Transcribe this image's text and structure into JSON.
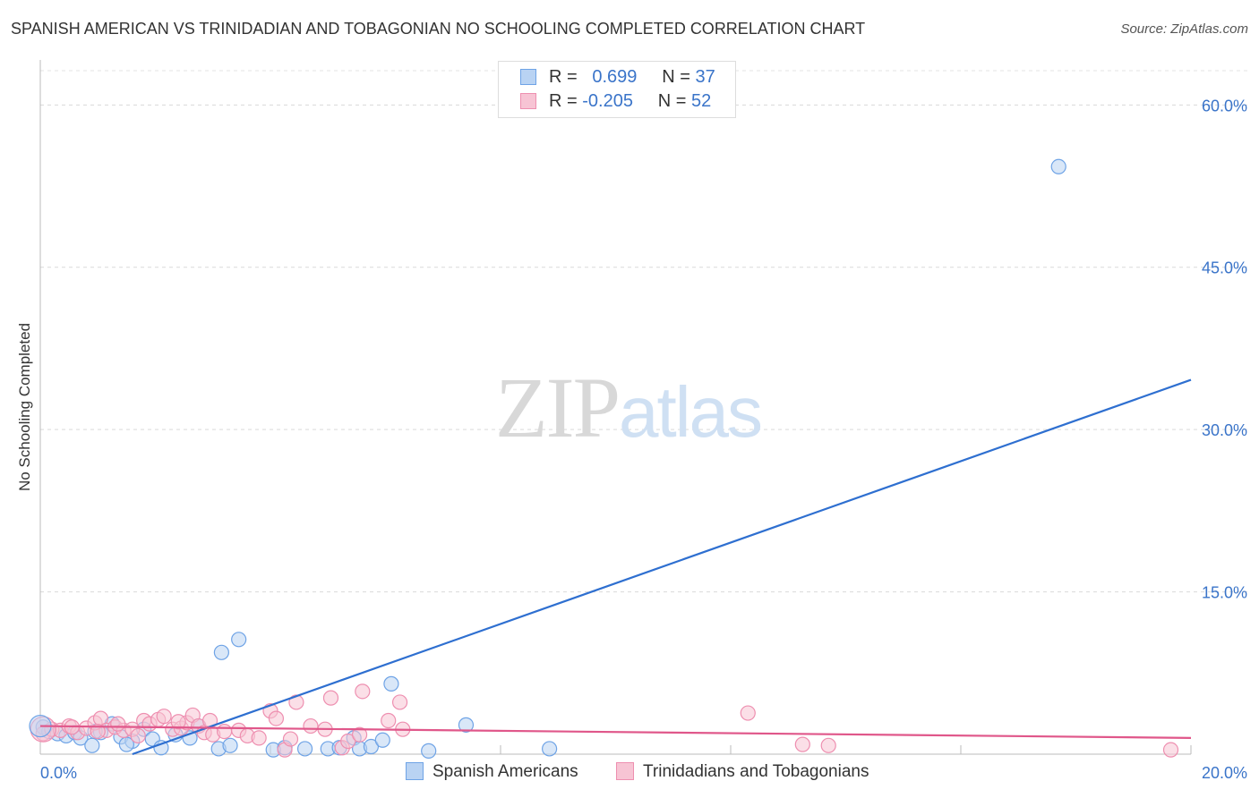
{
  "title": "SPANISH AMERICAN VS TRINIDADIAN AND TOBAGONIAN NO SCHOOLING COMPLETED CORRELATION CHART",
  "source": "Source: ZipAtlas.com",
  "watermark": {
    "zip": "ZIP",
    "atlas": "atlas"
  },
  "legend": {
    "rows": [
      {
        "r_label": "R =",
        "r_value": "0.699",
        "n_label": "N =",
        "n_value": "37"
      },
      {
        "r_label": "R =",
        "r_value": "-0.205",
        "n_label": "N =",
        "n_value": "52"
      }
    ]
  },
  "bottom_legend": [
    "Spanish Americans",
    "Trinidadians and Tobagonians"
  ],
  "chart_data": {
    "type": "scatter",
    "title": "SPANISH AMERICAN VS TRINIDADIAN AND TOBAGONIAN NO SCHOOLING COMPLETED CORRELATION CHART",
    "xlabel": "",
    "ylabel": "No Schooling Completed",
    "xlim": [
      0,
      20
    ],
    "ylim": [
      0,
      63.5
    ],
    "y_ticks": [
      15,
      30,
      45,
      60
    ],
    "y_tick_labels": [
      "15.0%",
      "30.0%",
      "45.0%",
      "60.0%"
    ],
    "x_tick_labels": [
      "0.0%",
      "20.0%"
    ],
    "grid": true,
    "series": [
      {
        "name": "Spanish Americans",
        "color": "#6ea3e6",
        "fill": "#b9d3f3",
        "line_color": "#2e6fd0",
        "trend": {
          "x": [
            1.6,
            20.0
          ],
          "y": [
            0.0,
            34.6
          ]
        },
        "points": [
          [
            0.05,
            2.5
          ],
          [
            0.15,
            2.1
          ],
          [
            0.3,
            1.9
          ],
          [
            0.45,
            1.7
          ],
          [
            0.6,
            2.0
          ],
          [
            0.7,
            1.5
          ],
          [
            0.9,
            0.8
          ],
          [
            1.05,
            2.0
          ],
          [
            1.25,
            2.8
          ],
          [
            1.4,
            1.6
          ],
          [
            1.6,
            1.2
          ],
          [
            1.8,
            2.3
          ],
          [
            1.95,
            1.4
          ],
          [
            2.1,
            0.6
          ],
          [
            2.35,
            1.8
          ],
          [
            2.6,
            1.5
          ],
          [
            2.75,
            2.6
          ],
          [
            3.1,
            0.5
          ],
          [
            3.15,
            9.4
          ],
          [
            3.3,
            0.8
          ],
          [
            3.45,
            10.6
          ],
          [
            4.05,
            0.4
          ],
          [
            4.25,
            0.6
          ],
          [
            5.0,
            0.5
          ],
          [
            5.2,
            0.6
          ],
          [
            5.45,
            1.5
          ],
          [
            5.55,
            0.5
          ],
          [
            5.75,
            0.7
          ],
          [
            5.95,
            1.3
          ],
          [
            6.1,
            6.5
          ],
          [
            6.75,
            0.3
          ],
          [
            7.4,
            2.7
          ],
          [
            8.85,
            0.5
          ],
          [
            17.7,
            54.3
          ],
          [
            0.95,
            2.1
          ],
          [
            1.5,
            0.9
          ],
          [
            4.6,
            0.5
          ]
        ]
      },
      {
        "name": "Trinidadians and Tobagonians",
        "color": "#ee8fb0",
        "fill": "#f7c4d4",
        "line_color": "#e0578a",
        "trend": {
          "x": [
            0.0,
            20.0
          ],
          "y": [
            2.6,
            1.5
          ]
        },
        "points": [
          [
            0.05,
            1.9
          ],
          [
            0.2,
            2.3
          ],
          [
            0.35,
            2.2
          ],
          [
            0.5,
            2.6
          ],
          [
            0.65,
            2.0
          ],
          [
            0.8,
            2.4
          ],
          [
            0.95,
            2.9
          ],
          [
            1.05,
            3.3
          ],
          [
            1.15,
            2.2
          ],
          [
            1.3,
            2.5
          ],
          [
            1.45,
            2.2
          ],
          [
            1.6,
            2.3
          ],
          [
            1.7,
            1.7
          ],
          [
            1.8,
            3.1
          ],
          [
            1.9,
            2.8
          ],
          [
            2.05,
            3.2
          ],
          [
            2.15,
            3.5
          ],
          [
            2.3,
            2.3
          ],
          [
            2.45,
            2.4
          ],
          [
            2.55,
            2.9
          ],
          [
            2.65,
            3.6
          ],
          [
            2.75,
            2.6
          ],
          [
            2.85,
            2.0
          ],
          [
            2.95,
            3.1
          ],
          [
            3.0,
            1.8
          ],
          [
            3.2,
            2.1
          ],
          [
            3.45,
            2.2
          ],
          [
            3.6,
            1.7
          ],
          [
            3.8,
            1.5
          ],
          [
            4.0,
            4.0
          ],
          [
            4.1,
            3.3
          ],
          [
            4.25,
            0.4
          ],
          [
            4.35,
            1.4
          ],
          [
            4.45,
            4.8
          ],
          [
            4.7,
            2.6
          ],
          [
            4.95,
            2.3
          ],
          [
            5.05,
            5.2
          ],
          [
            5.25,
            0.6
          ],
          [
            5.35,
            1.2
          ],
          [
            5.55,
            1.8
          ],
          [
            5.6,
            5.8
          ],
          [
            6.05,
            3.1
          ],
          [
            6.25,
            4.8
          ],
          [
            6.3,
            2.3
          ],
          [
            12.3,
            3.8
          ],
          [
            13.25,
            0.9
          ],
          [
            13.7,
            0.8
          ],
          [
            19.65,
            0.4
          ],
          [
            1.0,
            2.1
          ],
          [
            1.35,
            2.8
          ],
          [
            2.4,
            3.0
          ],
          [
            0.55,
            2.5
          ]
        ]
      }
    ]
  }
}
